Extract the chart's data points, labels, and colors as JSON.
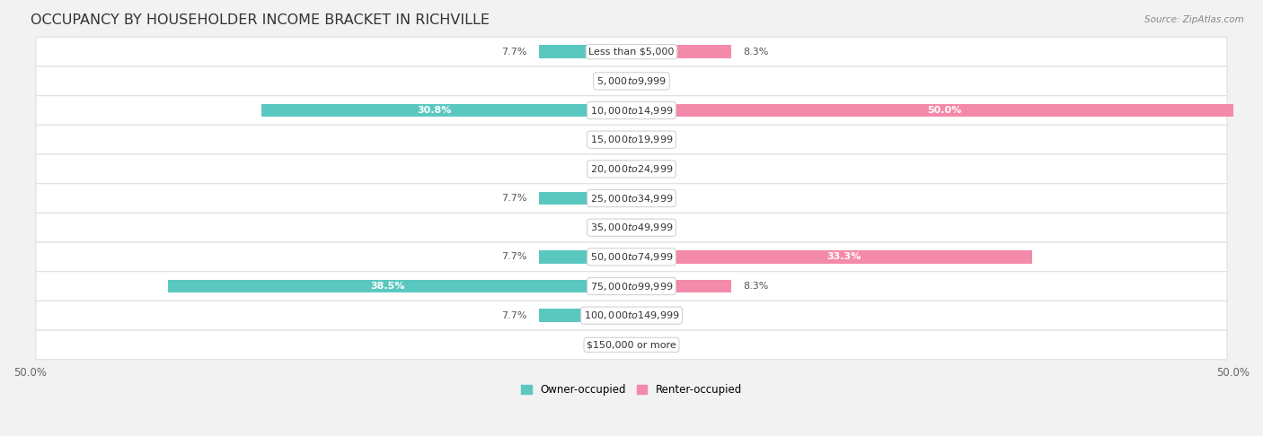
{
  "title": "OCCUPANCY BY HOUSEHOLDER INCOME BRACKET IN RICHVILLE",
  "source": "Source: ZipAtlas.com",
  "categories": [
    "Less than $5,000",
    "$5,000 to $9,999",
    "$10,000 to $14,999",
    "$15,000 to $19,999",
    "$20,000 to $24,999",
    "$25,000 to $34,999",
    "$35,000 to $49,999",
    "$50,000 to $74,999",
    "$75,000 to $99,999",
    "$100,000 to $149,999",
    "$150,000 or more"
  ],
  "owner_values": [
    7.7,
    0.0,
    30.8,
    0.0,
    0.0,
    7.7,
    0.0,
    7.7,
    38.5,
    7.7,
    0.0
  ],
  "renter_values": [
    8.3,
    0.0,
    50.0,
    0.0,
    0.0,
    0.0,
    0.0,
    33.3,
    8.3,
    0.0,
    0.0
  ],
  "owner_color": "#5bc8c0",
  "renter_color": "#f48aaa",
  "bar_height": 0.45,
  "xlim": 50.0,
  "background_color": "#f2f2f2",
  "title_fontsize": 11.5,
  "label_fontsize": 8,
  "category_fontsize": 8,
  "axis_label_fontsize": 8.5,
  "legend_fontsize": 8.5,
  "source_fontsize": 7.5
}
